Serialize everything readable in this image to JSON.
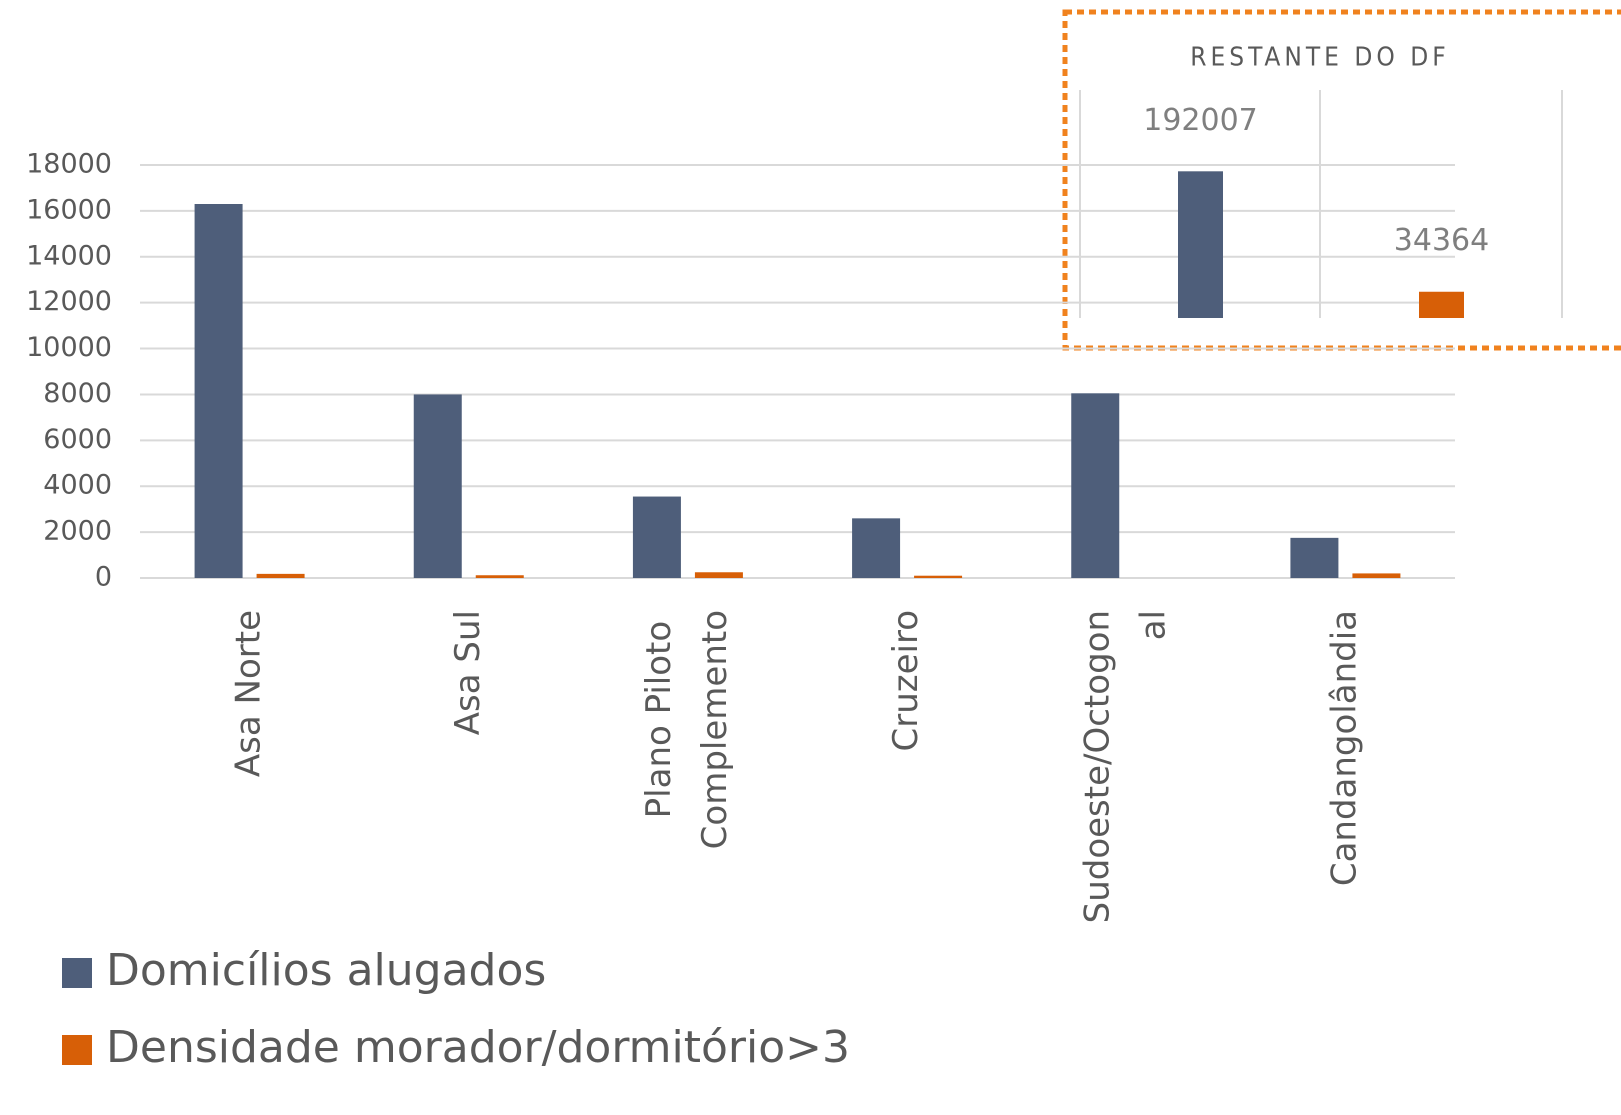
{
  "chart_data": [
    {
      "type": "bar",
      "categories": [
        "Asa Norte",
        "Asa Sul",
        "Plano Piloto Complemento",
        "Cruzeiro",
        "Sudoeste/Octogonal",
        "Candangolândia"
      ],
      "series": [
        {
          "name": "Domicílios alugados",
          "color": "#4e5e7a",
          "values": [
            16300,
            8000,
            3550,
            2600,
            8050,
            1750
          ]
        },
        {
          "name": "Densidade morador/dormitório>3",
          "color": "#d75f07",
          "values": [
            180,
            120,
            250,
            100,
            0,
            200
          ]
        }
      ],
      "ylim": [
        0,
        18000
      ],
      "yticks": [
        0,
        2000,
        4000,
        6000,
        8000,
        10000,
        12000,
        14000,
        16000,
        18000
      ],
      "grid": true,
      "legend": "bottom-left"
    },
    {
      "type": "bar",
      "title": "RESTANTE DO DF",
      "categories": [
        null,
        null
      ],
      "series": [
        {
          "name": "Domicílios alugados",
          "color": "#4e5e7a",
          "values": [
            192007,
            null
          ]
        },
        {
          "name": "Densidade morador/dormitório>3",
          "color": "#d75f07",
          "values": [
            null,
            34364
          ]
        }
      ],
      "ylim": [
        0,
        250000
      ],
      "data_labels": true
    }
  ]
}
